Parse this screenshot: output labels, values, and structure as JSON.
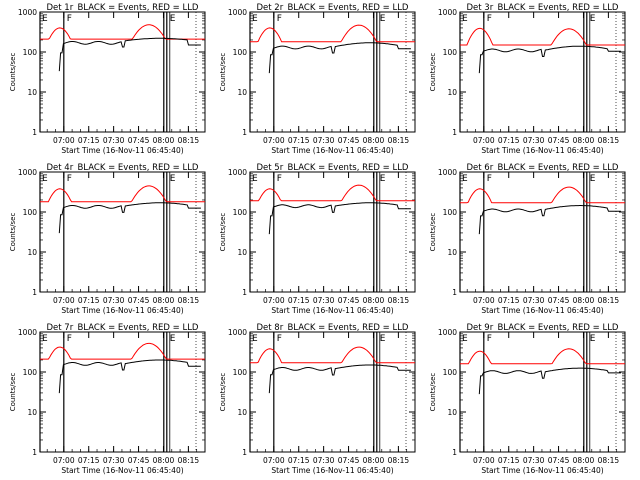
{
  "chart_data": {
    "type": "line",
    "layout": "3x3 grid",
    "yscale": "log",
    "ylim": [
      1,
      1000
    ],
    "ylabel": "Counts/sec",
    "xlabel": "Start Time (16-Nov-11 06:45:40)",
    "xlim": [
      "06:45:40",
      "08:25:00"
    ],
    "x_tick_labels": [
      "07:00",
      "07:15",
      "07:30",
      "07:45",
      "08:00",
      "08:15"
    ],
    "y_tick_labels": [
      "1",
      "10",
      "100",
      "1000"
    ],
    "series_colors": {
      "events": "#000000",
      "lld": "#ff0000"
    },
    "markers": [
      {
        "label": "E",
        "time": "06:45:40"
      },
      {
        "label": "F",
        "time": "07:00"
      },
      {
        "label": "E",
        "time": "08:02"
      }
    ],
    "panels": [
      {
        "title": "Det 1r_BLACK = Events, RED = LLD",
        "black_levels": [
          95,
          170,
          190,
          220,
          150
        ],
        "red_levels": [
          400,
          210,
          220,
          480,
          200
        ]
      },
      {
        "title": "Det 2r_BLACK = Events, RED = LLD",
        "black_levels": [
          85,
          130,
          135,
          170,
          120
        ],
        "red_levels": [
          400,
          180,
          180,
          470,
          160
        ]
      },
      {
        "title": "Det 3r_BLACK = Events, RED = LLD",
        "black_levels": [
          85,
          110,
          110,
          140,
          105
        ],
        "red_levels": [
          390,
          150,
          145,
          380,
          150
        ]
      },
      {
        "title": "Det 4r_BLACK = Events, RED = LLD",
        "black_levels": [
          85,
          135,
          140,
          170,
          125
        ],
        "red_levels": [
          380,
          180,
          170,
          450,
          160
        ]
      },
      {
        "title": "Det 5r_BLACK = Events, RED = LLD",
        "black_levels": [
          80,
          140,
          140,
          170,
          120
        ],
        "red_levels": [
          380,
          190,
          180,
          470,
          160
        ]
      },
      {
        "title": "Det 6r_BLACK = Events, RED = LLD",
        "black_levels": [
          80,
          110,
          115,
          145,
          105
        ],
        "red_levels": [
          380,
          170,
          170,
          420,
          160
        ]
      },
      {
        "title": "Det 7r_BLACK = Events, RED = LLD",
        "black_levels": [
          85,
          160,
          160,
          200,
          140
        ],
        "red_levels": [
          420,
          210,
          200,
          520,
          190
        ]
      },
      {
        "title": "Det 8r_BLACK = Events, RED = LLD",
        "black_levels": [
          85,
          120,
          120,
          150,
          110
        ],
        "red_levels": [
          380,
          170,
          165,
          420,
          160
        ]
      },
      {
        "title": "Det 9r_BLACK = Events, RED = LLD",
        "black_levels": [
          80,
          100,
          100,
          125,
          95
        ],
        "red_levels": [
          330,
          160,
          155,
          380,
          150
        ]
      }
    ]
  }
}
